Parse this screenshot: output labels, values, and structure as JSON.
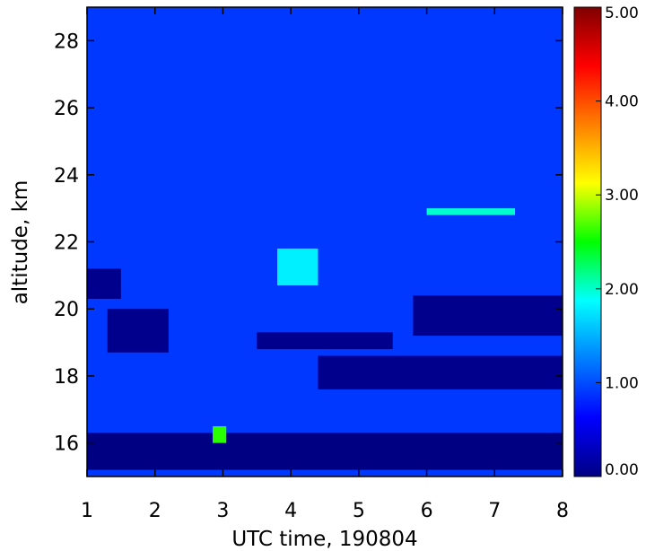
{
  "chart_data": {
    "type": "heatmap",
    "xlabel": "UTC time, 190804",
    "ylabel": "altitude, km",
    "xlim": [
      1,
      8
    ],
    "ylim": [
      15,
      29
    ],
    "x_ticks": [
      "1",
      "2",
      "3",
      "4",
      "5",
      "6",
      "7",
      "8"
    ],
    "y_ticks": [
      "16",
      "18",
      "20",
      "22",
      "24",
      "26",
      "28"
    ],
    "colorbar": {
      "range": [
        0,
        5
      ],
      "ticks": [
        "0.00",
        "1.00",
        "2.00",
        "3.00",
        "4.00",
        "5.00"
      ],
      "colormap": "jet-like"
    },
    "background_value": 0.9,
    "regions": [
      {
        "desc": "black below-zero layer",
        "value": 0.0,
        "x": [
          1.0,
          8.0
        ],
        "y": [
          15.2,
          16.3
        ]
      },
      {
        "desc": "black lower layer",
        "value": 0.05,
        "x": [
          4.4,
          8.0
        ],
        "y": [
          17.6,
          18.6
        ]
      },
      {
        "desc": "black layer left",
        "value": 0.05,
        "x": [
          1.3,
          2.2
        ],
        "y": [
          18.7,
          20.0
        ]
      },
      {
        "desc": "black layer mid",
        "value": 0.05,
        "x": [
          3.5,
          5.5
        ],
        "y": [
          18.8,
          19.3
        ]
      },
      {
        "desc": "black layer right",
        "value": 0.05,
        "x": [
          5.8,
          8.0
        ],
        "y": [
          19.2,
          20.4
        ]
      },
      {
        "desc": "left column top",
        "value": 0.05,
        "x": [
          1.0,
          1.5
        ],
        "y": [
          20.3,
          21.2
        ]
      },
      {
        "desc": "cloud patch 21km",
        "value": 1.8,
        "x": [
          3.8,
          4.4
        ],
        "y": [
          20.7,
          21.8
        ]
      },
      {
        "desc": "cloud patch 23km",
        "value": 2.0,
        "x": [
          6.0,
          7.3
        ],
        "y": [
          22.8,
          23.0
        ]
      },
      {
        "desc": "bright spot",
        "value": 2.6,
        "x": [
          2.85,
          3.05
        ],
        "y": [
          16.0,
          16.5
        ]
      }
    ]
  }
}
